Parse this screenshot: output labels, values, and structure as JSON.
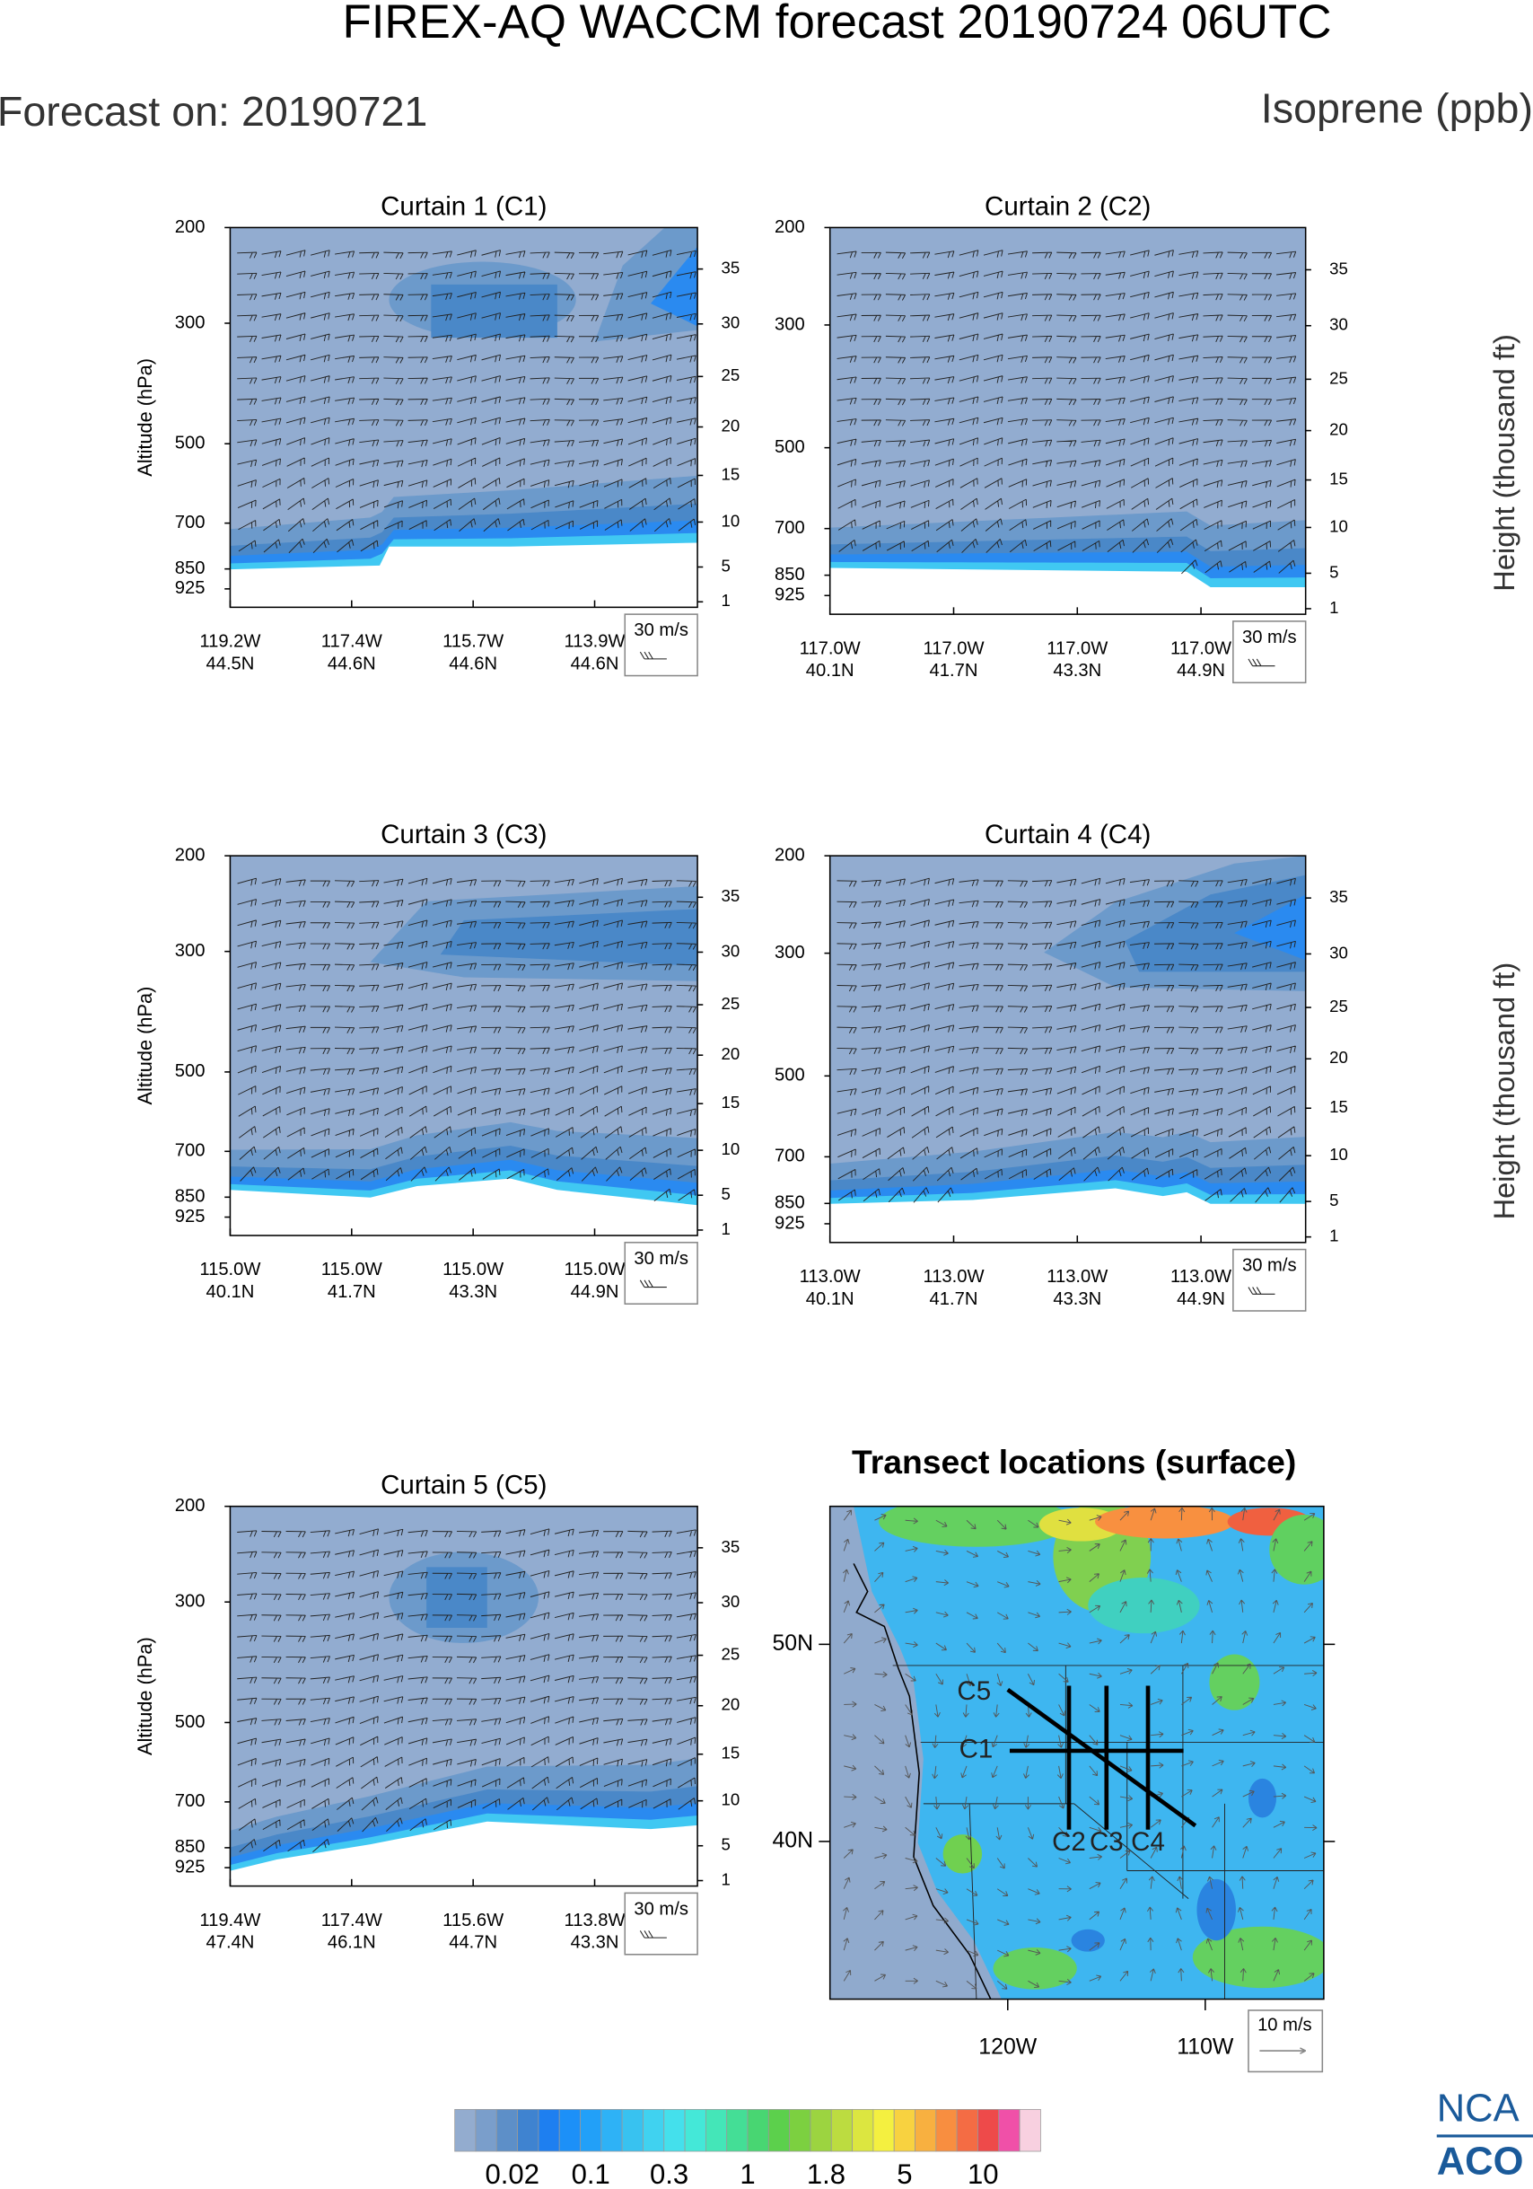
{
  "title": "FIREX-AQ WACCM forecast 20190724 06UTC",
  "forecast_on": "Forecast on: 20190721",
  "variable": "Isoprene (ppb)",
  "logo": [
    "NCA",
    "ACO"
  ],
  "chart_data": [
    {
      "type": "curtain",
      "title": "Curtain 1 (C1)",
      "ylabel": "Altitude (hPa)",
      "ylim": [
        200,
        1000
      ],
      "log_scale": true,
      "yticks": [
        200,
        300,
        500,
        700,
        850,
        925
      ],
      "y2ticks": [
        1,
        5,
        10,
        15,
        20,
        25,
        30,
        35
      ],
      "lons": [
        "119.2W",
        "117.4W",
        "115.7W",
        "113.9W"
      ],
      "lats": [
        "44.5N",
        "44.6N",
        "44.6N",
        "44.6N"
      ],
      "wind_key": "30 m/s"
    },
    {
      "type": "curtain",
      "title": "Curtain 2 (C2)",
      "ylim": [
        200,
        1000
      ],
      "log_scale": true,
      "yticks": [
        200,
        300,
        500,
        700,
        850,
        925
      ],
      "y2ticks": [
        1,
        5,
        10,
        15,
        20,
        25,
        30,
        35
      ],
      "y2label": "Height (thousand ft)",
      "lons": [
        "117.0W",
        "117.0W",
        "117.0W",
        "117.0W"
      ],
      "lats": [
        "40.1N",
        "41.7N",
        "43.3N",
        "44.9N"
      ],
      "wind_key": "30 m/s"
    },
    {
      "type": "curtain",
      "title": "Curtain 3 (C3)",
      "ylabel": "Altitude (hPa)",
      "ylim": [
        200,
        1000
      ],
      "log_scale": true,
      "yticks": [
        200,
        300,
        500,
        700,
        850,
        925
      ],
      "y2ticks": [
        1,
        5,
        10,
        15,
        20,
        25,
        30,
        35
      ],
      "lons": [
        "115.0W",
        "115.0W",
        "115.0W",
        "115.0W"
      ],
      "lats": [
        "40.1N",
        "41.7N",
        "43.3N",
        "44.9N"
      ],
      "wind_key": "30 m/s"
    },
    {
      "type": "curtain",
      "title": "Curtain 4 (C4)",
      "ylim": [
        200,
        1000
      ],
      "log_scale": true,
      "yticks": [
        200,
        300,
        500,
        700,
        850,
        925
      ],
      "y2ticks": [
        1,
        5,
        10,
        15,
        20,
        25,
        30,
        35
      ],
      "y2label": "Height (thousand ft)",
      "lons": [
        "113.0W",
        "113.0W",
        "113.0W",
        "113.0W"
      ],
      "lats": [
        "40.1N",
        "41.7N",
        "43.3N",
        "44.9N"
      ],
      "wind_key": "30 m/s"
    },
    {
      "type": "curtain",
      "title": "Curtain 5 (C5)",
      "ylabel": "Altitude (hPa)",
      "ylim": [
        200,
        1000
      ],
      "log_scale": true,
      "yticks": [
        200,
        300,
        500,
        700,
        850,
        925
      ],
      "y2ticks": [
        1,
        5,
        10,
        15,
        20,
        25,
        30,
        35
      ],
      "lons": [
        "119.4W",
        "117.4W",
        "115.6W",
        "113.8W"
      ],
      "lats": [
        "47.4N",
        "46.1N",
        "44.7N",
        "43.3N"
      ],
      "wind_key": "30 m/s"
    },
    {
      "type": "map",
      "title": "Transect locations (surface)",
      "xlim": [
        -129,
        -104
      ],
      "ylim": [
        32,
        57
      ],
      "xticks": [
        {
          "value": -120,
          "label": "120W"
        },
        {
          "value": -110,
          "label": "110W"
        }
      ],
      "yticks": [
        {
          "value": 40,
          "label": "40N"
        },
        {
          "value": 50,
          "label": "50N"
        }
      ],
      "transects": [
        {
          "name": "C1",
          "lon": [
            -119.9,
            -111.1
          ],
          "lat": [
            44.6,
            44.6
          ]
        },
        {
          "name": "C2",
          "lon": [
            -116.9,
            -116.9
          ],
          "lat": [
            47.9,
            40.6
          ]
        },
        {
          "name": "C3",
          "lon": [
            -115,
            -115
          ],
          "lat": [
            47.9,
            40.6
          ]
        },
        {
          "name": "C4",
          "lon": [
            -112.9,
            -112.9
          ],
          "lat": [
            47.9,
            40.6
          ]
        },
        {
          "name": "C5",
          "lon": [
            -120,
            -110.5
          ],
          "lat": [
            47.7,
            40.8
          ]
        }
      ],
      "wind_key": "10 m/s"
    },
    {
      "type": "colorbar",
      "colors": [
        "#93accf",
        "#7a9ecb",
        "#5d8fc8",
        "#3f83d0",
        "#1e7ff0",
        "#1c90f8",
        "#22a0f8",
        "#2eb2f6",
        "#38c2f0",
        "#40d2f0",
        "#44e0ec",
        "#44e8d8",
        "#44e6b8",
        "#44de96",
        "#48d672",
        "#5cd04c",
        "#7cd040",
        "#9cd440",
        "#bcdc40",
        "#dce640",
        "#f4f040",
        "#f8d240",
        "#f8b040",
        "#f88e40",
        "#f46c44",
        "#ee4a4a",
        "#f050a8",
        "#f8d0e0"
      ],
      "ticks": [
        0.02,
        0.1,
        0.3,
        1,
        1.8,
        5,
        10
      ]
    }
  ]
}
